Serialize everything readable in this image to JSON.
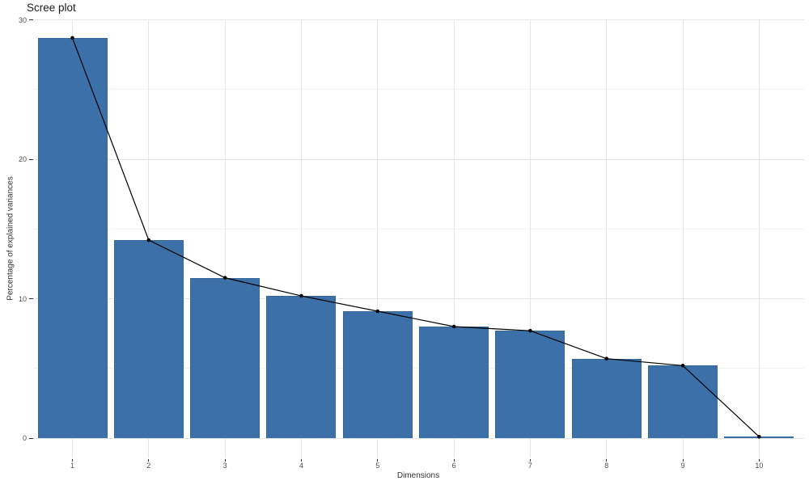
{
  "chart_data": {
    "type": "bar",
    "overlay": "line+point",
    "title": "Scree plot",
    "xlabel": "Dimensions",
    "ylabel": "Percentage of explained variances",
    "categories": [
      "1",
      "2",
      "3",
      "4",
      "5",
      "6",
      "7",
      "8",
      "9",
      "10"
    ],
    "values": [
      28.7,
      14.2,
      11.5,
      10.2,
      9.1,
      8.0,
      7.7,
      5.7,
      5.2,
      0.1
    ],
    "ylim": [
      0,
      30
    ],
    "yticks_major": [
      0,
      10,
      20,
      30
    ],
    "yticks_minor": [
      5,
      15,
      25
    ],
    "grid": "on",
    "legend": "none",
    "colors": {
      "bar_fill": "#3b70a8",
      "bar_border": "#35679d",
      "line": "#000000",
      "point": "#000000",
      "grid_major": "#e5e5e5",
      "grid_minor": "#f2f2f2",
      "axis_tick": "#333333",
      "tick_label": "#4d4d4d",
      "axis_title": "#333333",
      "title": "#1a1a1a",
      "background": "#ffffff"
    }
  }
}
